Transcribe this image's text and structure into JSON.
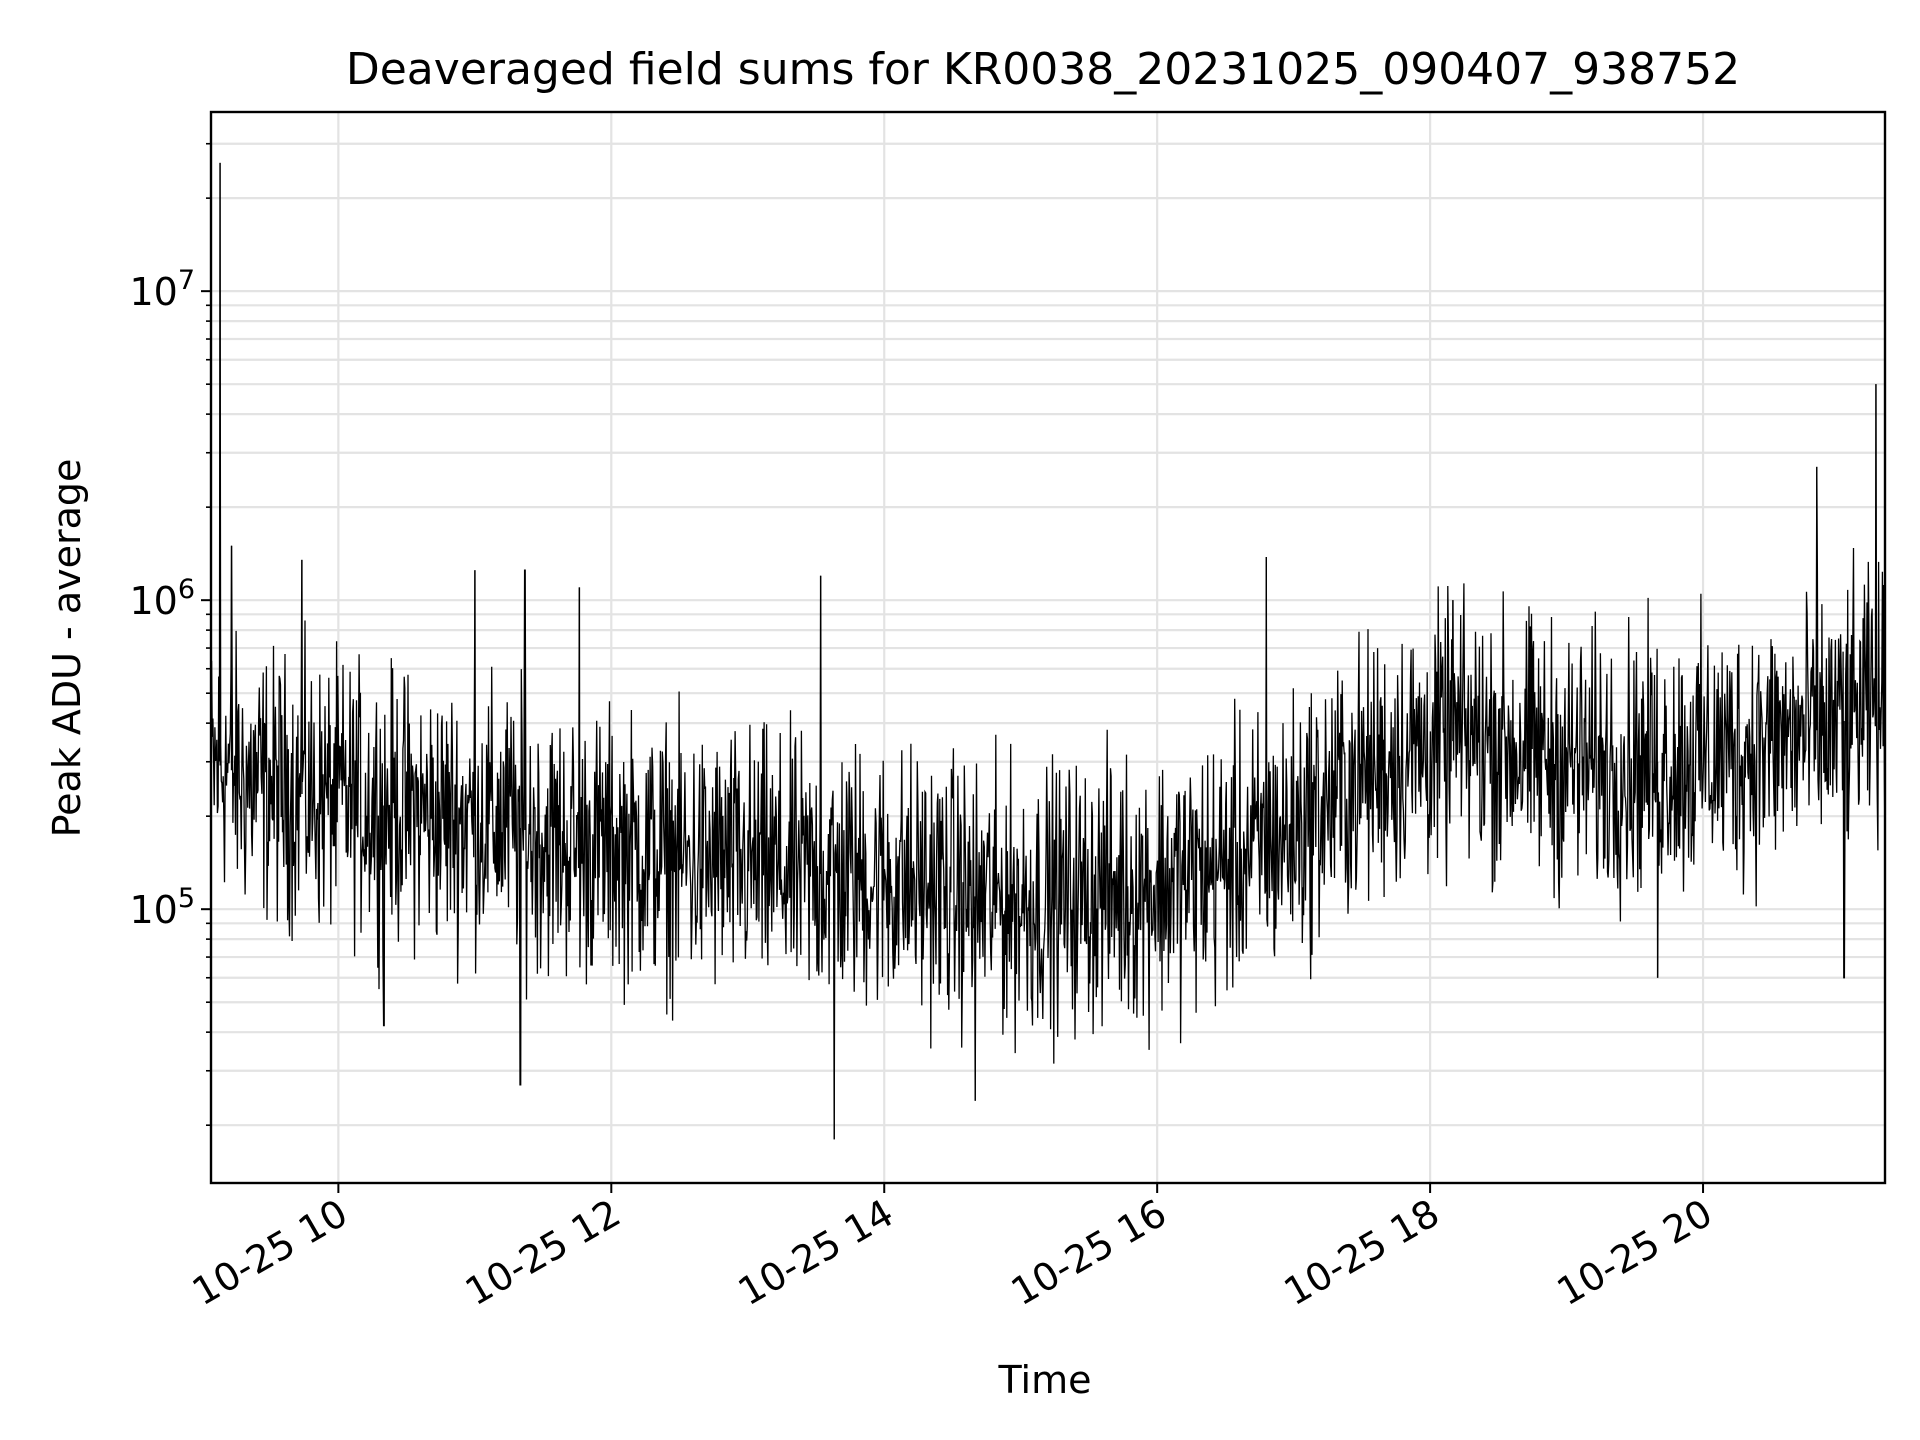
{
  "chart_data": {
    "type": "line",
    "title": "Deaveraged field sums for KR0038_20231025_090407_938752",
    "xlabel": "Time",
    "ylabel": "Peak ADU - average",
    "yscale": "log",
    "xlim": [
      "2023-10-25 09:04",
      "2023-10-25 21:20"
    ],
    "ylim": [
      13000,
      38000000
    ],
    "x_ticks": [
      {
        "value": "2023-10-25 10:00",
        "label": "10-25 10"
      },
      {
        "value": "2023-10-25 12:00",
        "label": "10-25 12"
      },
      {
        "value": "2023-10-25 14:00",
        "label": "10-25 14"
      },
      {
        "value": "2023-10-25 16:00",
        "label": "10-25 16"
      },
      {
        "value": "2023-10-25 18:00",
        "label": "10-25 18"
      },
      {
        "value": "2023-10-25 20:00",
        "label": "10-25 20"
      }
    ],
    "y_ticks": [
      {
        "value": 100000,
        "base": "10",
        "exp": "5"
      },
      {
        "value": 1000000,
        "base": "10",
        "exp": "6"
      },
      {
        "value": 10000000,
        "base": "10",
        "exp": "7"
      }
    ],
    "grid": true,
    "line_color": "#000000",
    "series": [
      {
        "x": [
          "2023-10-25 09:05",
          "2023-10-25 09:10",
          "2023-10-25 09:15",
          "2023-10-25 09:20",
          "2023-10-25 09:30",
          "2023-10-25 09:40",
          "2023-10-25 09:50",
          "2023-10-25 10:00",
          "2023-10-25 10:15",
          "2023-10-25 10:30",
          "2023-10-25 10:45",
          "2023-10-25 11:00",
          "2023-10-25 11:15",
          "2023-10-25 11:30",
          "2023-10-25 11:45",
          "2023-10-25 12:00",
          "2023-10-25 12:20",
          "2023-10-25 12:40",
          "2023-10-25 13:00",
          "2023-10-25 13:20",
          "2023-10-25 13:40",
          "2023-10-25 14:00",
          "2023-10-25 14:20",
          "2023-10-25 14:40",
          "2023-10-25 15:00",
          "2023-10-25 15:20",
          "2023-10-25 15:40",
          "2023-10-25 16:00",
          "2023-10-25 16:20",
          "2023-10-25 16:40",
          "2023-10-25 17:00",
          "2023-10-25 17:20",
          "2023-10-25 17:40",
          "2023-10-25 18:00",
          "2023-10-25 18:20",
          "2023-10-25 18:40",
          "2023-10-25 19:00",
          "2023-10-25 19:20",
          "2023-10-25 19:40",
          "2023-10-25 20:00",
          "2023-10-25 20:20",
          "2023-10-25 20:40",
          "2023-10-25 21:00",
          "2023-10-25 21:15"
        ],
        "values": [
          280000,
          300000,
          270000,
          260000,
          250000,
          240000,
          230000,
          230000,
          220000,
          210000,
          200000,
          200000,
          190000,
          170000,
          160000,
          160000,
          150000,
          140000,
          140000,
          130000,
          130000,
          125000,
          120000,
          110000,
          105000,
          110000,
          115000,
          120000,
          130000,
          150000,
          180000,
          240000,
          300000,
          340000,
          360000,
          330000,
          300000,
          290000,
          300000,
          310000,
          330000,
          360000,
          400000,
          450000
        ]
      }
    ],
    "spikes": [
      {
        "x": "2023-10-25 09:08",
        "value": 26000000
      },
      {
        "x": "2023-10-25 09:13",
        "value": 1500000
      },
      {
        "x": "2023-10-25 09:44",
        "value": 1350000
      },
      {
        "x": "2023-10-25 11:00",
        "value": 1250000
      },
      {
        "x": "2023-10-25 11:22",
        "value": 1250000
      },
      {
        "x": "2023-10-25 11:46",
        "value": 1100000
      },
      {
        "x": "2023-10-25 13:32",
        "value": 1200000
      },
      {
        "x": "2023-10-25 16:48",
        "value": 1380000
      },
      {
        "x": "2023-10-25 18:10",
        "value": 1000000
      },
      {
        "x": "2023-10-25 20:50",
        "value": 2700000
      },
      {
        "x": "2023-10-25 21:16",
        "value": 5000000
      },
      {
        "x": "2023-10-25 11:20",
        "value": 27000
      },
      {
        "x": "2023-10-25 13:38",
        "value": 18000
      },
      {
        "x": "2023-10-25 14:40",
        "value": 24000
      },
      {
        "x": "2023-10-25 10:20",
        "value": 42000
      },
      {
        "x": "2023-10-25 19:40",
        "value": 60000
      },
      {
        "x": "2023-10-25 21:02",
        "value": 60000
      }
    ]
  }
}
